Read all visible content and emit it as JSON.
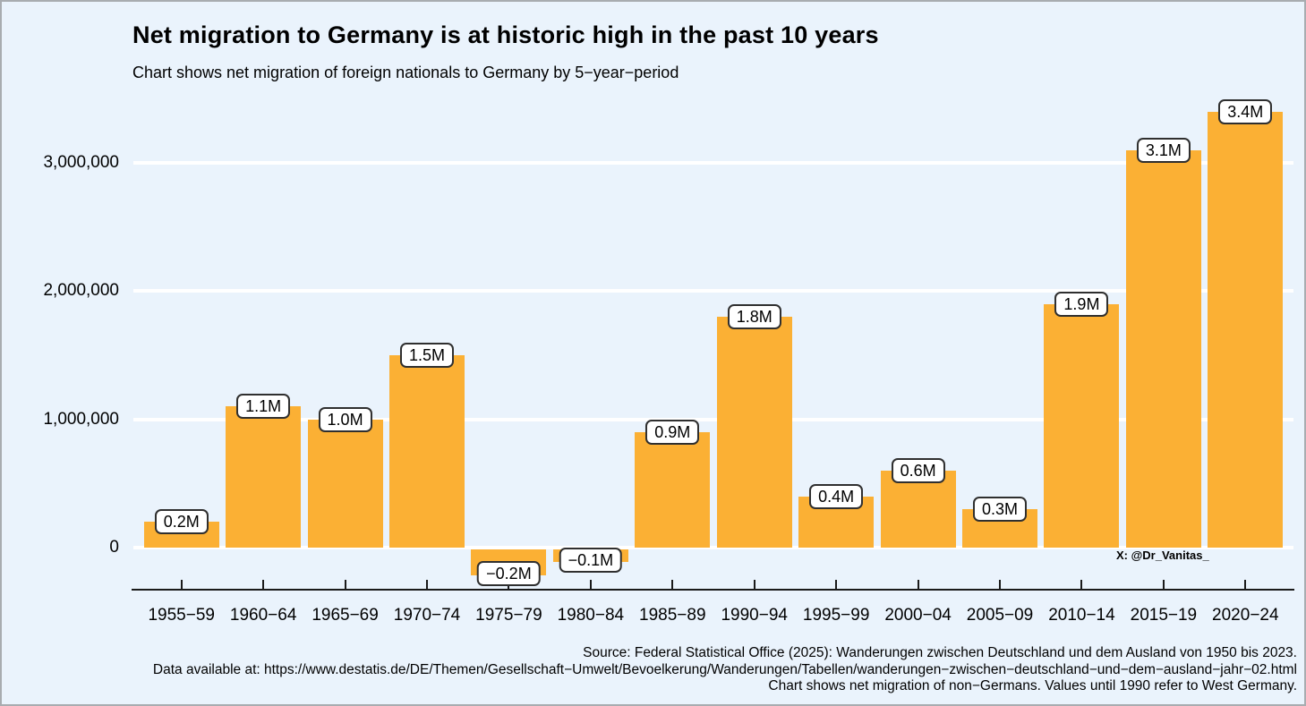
{
  "header": {
    "title": "Net migration to Germany is at historic high in the past 10 years",
    "subtitle": "Chart shows net migration of foreign nationals to Germany by 5−year−period"
  },
  "watermark": "X: @Dr_Vanitas_",
  "footer": {
    "lines": [
      "Source: Federal Statistical Office (2025): Wanderungen zwischen Deutschland und dem Ausland von 1950 bis 2023.",
      "Data available at: https://www.destatis.de/DE/Themen/Gesellschaft−Umwelt/Bevoelkerung/Wanderungen/Tabellen/wanderungen−zwischen−deutschland−und−dem−ausland−jahr−02.html",
      "Chart shows net migration of non−Germans. Values until 1990 refer to West Germany."
    ]
  },
  "colors": {
    "background": "#EAF3FC",
    "bar": "#FBB034",
    "gridline": "#FFFFFF",
    "axis": "#1a1a1a",
    "label_box_background": "#FFFFFF",
    "label_box_border": "#2F2F2F",
    "frame_border": "#A8ACB0"
  },
  "chart_data": {
    "type": "bar",
    "title": "Net migration to Germany is at historic high in the past 10 years",
    "subtitle": "Chart shows net migration of foreign nationals to Germany by 5−year−period",
    "xlabel": "",
    "ylabel": "",
    "categories": [
      "1955−59",
      "1960−64",
      "1965−69",
      "1970−74",
      "1975−79",
      "1980−84",
      "1985−89",
      "1990−94",
      "1995−99",
      "2000−04",
      "2005−09",
      "2010−14",
      "2015−19",
      "2020−24"
    ],
    "values_millions": [
      0.2,
      1.1,
      1.0,
      1.5,
      -0.2,
      -0.1,
      0.9,
      1.8,
      0.4,
      0.6,
      0.3,
      1.9,
      3.1,
      3.4
    ],
    "bar_labels": [
      "0.2M",
      "1.1M",
      "1.0M",
      "1.5M",
      "−0.2M",
      "−0.1M",
      "0.9M",
      "1.8M",
      "0.4M",
      "0.6M",
      "0.3M",
      "1.9M",
      "3.1M",
      "3.4M"
    ],
    "y_ticks": [
      {
        "value": 0,
        "label": "0"
      },
      {
        "value": 1000000,
        "label": "1,000,000"
      },
      {
        "value": 2000000,
        "label": "2,000,000"
      },
      {
        "value": 3000000,
        "label": "3,000,000"
      }
    ],
    "ylim": [
      -450000,
      3500000
    ],
    "grid": "horizontal white major gridlines at y ticks",
    "legend": "none",
    "bar_color": "#FBB034",
    "value_label_style": "white rounded box with dark border centered on bar end"
  }
}
